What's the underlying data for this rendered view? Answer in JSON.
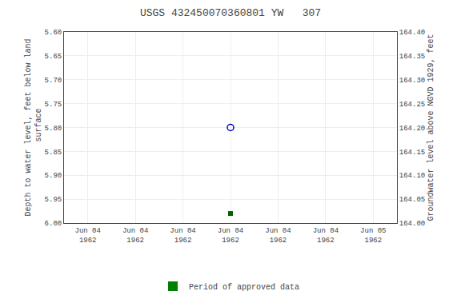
{
  "chart_data": {
    "type": "scatter",
    "title": "USGS 432450070360801 YW   307",
    "y_label": "Depth to water level, feet below land\n surface",
    "y2_label": "Groundwater level above NGVD 1929, feet",
    "categories": [
      "Jun 04\n1962",
      "Jun 04\n1962",
      "Jun 04\n1962",
      "Jun 04\n1962",
      "Jun 04\n1962",
      "Jun 04\n1962",
      "Jun 05\n1962"
    ],
    "ylim": [
      6.0,
      5.6
    ],
    "yticks": [
      {
        "value": 5.6,
        "label": "5.60"
      },
      5.65,
      {
        "value": 5.7,
        "label": "5.70"
      },
      5.75,
      {
        "value": 5.8,
        "label": "5.80"
      },
      5.85,
      {
        "value": 5.9,
        "label": "5.90"
      },
      5.95,
      {
        "value": 6.0,
        "label": "6.00"
      }
    ],
    "y2lim": [
      164.0,
      164.4
    ],
    "y2ticks": [
      {
        "value": 164.0,
        "label": "164.00"
      },
      164.05,
      {
        "value": 164.1,
        "label": "164.10"
      },
      164.15,
      {
        "value": 164.2,
        "label": "164.20"
      },
      164.25,
      {
        "value": 164.3,
        "label": "164.30"
      },
      164.35,
      {
        "value": 164.4,
        "label": "164.40"
      }
    ],
    "grid": true,
    "legend": "bottom",
    "series": [
      {
        "color": "#0000cc",
        "marker": "circle-open",
        "values": [
          null,
          null,
          null,
          5.8,
          null,
          null,
          null
        ]
      },
      {
        "color": "#006400",
        "marker": "square",
        "values": [
          null,
          null,
          null,
          5.98,
          null,
          null,
          null
        ]
      },
      {
        "name": "Period of approved data",
        "type": "bar",
        "color": "#008000",
        "values": [
          null,
          null,
          null,
          null,
          null,
          null,
          null
        ]
      }
    ]
  }
}
